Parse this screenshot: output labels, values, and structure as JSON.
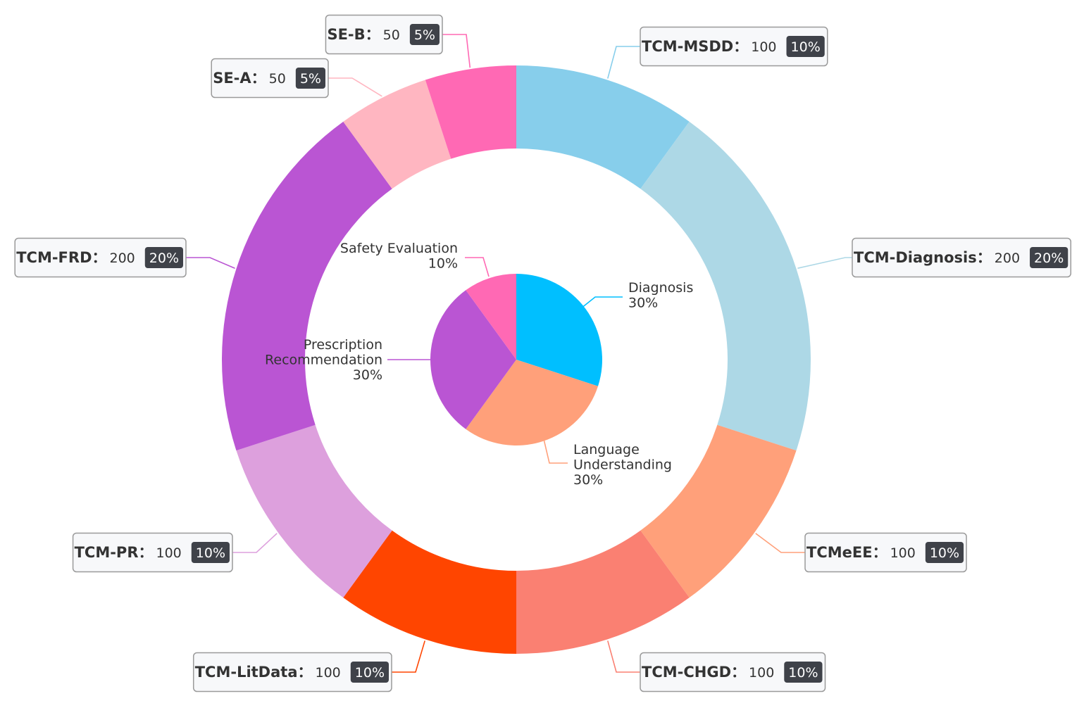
{
  "chart_data": {
    "type": "pie",
    "inner": {
      "slices": [
        {
          "name": "Diagnosis",
          "label_lines": [
            "Diagnosis",
            "30%"
          ],
          "value": 30,
          "color": "#00bfff"
        },
        {
          "name": "Language Understanding",
          "label_lines": [
            "Language",
            "Understanding",
            "30%"
          ],
          "value": 30,
          "color": "#ffa07a"
        },
        {
          "name": "Prescription Recommendation",
          "label_lines": [
            "Prescription",
            "Recommendation",
            "30%"
          ],
          "value": 30,
          "color": "#ba55d3"
        },
        {
          "name": "Safety Evaluation",
          "label_lines": [
            "Safety Evaluation",
            "10%"
          ],
          "value": 10,
          "color": "#ff69b4"
        }
      ]
    },
    "outer": {
      "slices": [
        {
          "name": "TCM-MSDD",
          "value": 100,
          "percent": "10%",
          "color": "#87ceeb"
        },
        {
          "name": "TCM-Diagnosis",
          "value": 200,
          "percent": "20%",
          "color": "#add8e6"
        },
        {
          "name": "TCMeEE",
          "value": 100,
          "percent": "10%",
          "color": "#ffa07a"
        },
        {
          "name": "TCM-CHGD",
          "value": 100,
          "percent": "10%",
          "color": "#fa8072"
        },
        {
          "name": "TCM-LitData",
          "value": 100,
          "percent": "10%",
          "color": "#ff4500"
        },
        {
          "name": "TCM-PR",
          "value": 100,
          "percent": "10%",
          "color": "#dda0dd"
        },
        {
          "name": "TCM-FRD",
          "value": 200,
          "percent": "20%",
          "color": "#ba55d3"
        },
        {
          "name": "SE-A",
          "value": 50,
          "percent": "5%",
          "color": "#ffb6c1"
        },
        {
          "name": "SE-B",
          "value": 50,
          "percent": "5%",
          "color": "#ff69b4"
        }
      ]
    },
    "value_separator": "："
  }
}
